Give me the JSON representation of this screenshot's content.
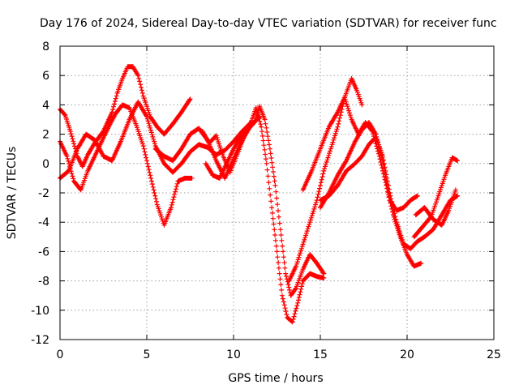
{
  "chart_data": {
    "type": "scatter",
    "title": "Day 176 of 2024, Sidereal Day-to-day VTEC variation (SDTVAR) for receiver func",
    "xlabel": "GPS time / hours",
    "ylabel": "SDTVAR / TECUs",
    "xlim": [
      0,
      25
    ],
    "ylim": [
      -12,
      8
    ],
    "xticks": [
      0,
      5,
      10,
      15,
      20,
      25
    ],
    "yticks": [
      -12,
      -10,
      -8,
      -6,
      -4,
      -2,
      0,
      2,
      4,
      6,
      8
    ],
    "grid": true,
    "marker": "+",
    "color": "#ff0000",
    "series": [
      {
        "name": "track-1",
        "x": [
          0.0,
          0.3,
          0.6,
          1.0,
          1.3,
          1.6,
          2.0,
          2.5,
          3.0,
          3.3,
          3.6,
          3.9,
          4.2,
          4.5,
          4.8,
          5.2,
          5.6,
          6.0,
          6.5,
          7.0,
          7.5
        ],
        "y": [
          3.7,
          3.3,
          2.2,
          0.5,
          -0.2,
          0.6,
          1.4,
          2.2,
          3.5,
          4.8,
          5.8,
          6.6,
          6.6,
          6.0,
          4.6,
          3.2,
          2.5,
          2.0,
          2.7,
          3.5,
          4.4
        ]
      },
      {
        "name": "track-2",
        "x": [
          0.0,
          0.4,
          0.8,
          1.2,
          1.6,
          2.0,
          2.4,
          2.8,
          3.2,
          3.6,
          4.0,
          4.4,
          4.8,
          5.2,
          5.6,
          6.0,
          6.4,
          6.8,
          7.2,
          7.6
        ],
        "y": [
          1.5,
          0.5,
          -1.2,
          -1.8,
          -0.5,
          0.5,
          1.5,
          2.5,
          3.4,
          4.0,
          3.8,
          2.6,
          1.2,
          -0.8,
          -2.8,
          -4.2,
          -3.0,
          -1.2,
          -1.0,
          -1.0
        ]
      },
      {
        "name": "track-3",
        "x": [
          0.0,
          0.5,
          1.0,
          1.5,
          2.0,
          2.5,
          3.0,
          3.5,
          4.0,
          4.5,
          5.0,
          5.5,
          6.0,
          6.5,
          7.0,
          7.5,
          8.0,
          8.5,
          9.0,
          9.5,
          10.0,
          10.5,
          11.0
        ],
        "y": [
          -1.0,
          -0.5,
          1.0,
          2.0,
          1.6,
          0.5,
          0.2,
          1.5,
          3.0,
          4.2,
          3.2,
          1.2,
          0.0,
          -0.6,
          0.0,
          0.8,
          1.3,
          1.1,
          0.6,
          0.9,
          1.5,
          2.2,
          2.8
        ]
      },
      {
        "name": "track-4",
        "x": [
          5.5,
          6.0,
          6.5,
          7.0,
          7.5,
          8.0,
          8.5,
          9.0,
          9.5,
          10.0,
          10.5,
          11.0,
          11.5
        ],
        "y": [
          1.0,
          0.5,
          0.2,
          1.0,
          2.0,
          2.4,
          1.6,
          0.2,
          -1.0,
          0.3,
          1.6,
          2.6,
          3.2
        ]
      },
      {
        "name": "track-5",
        "x": [
          8.2,
          8.6,
          9.0,
          9.4,
          9.8,
          10.2,
          10.6,
          11.0,
          11.3,
          11.6,
          11.9,
          12.2,
          12.5,
          12.8,
          13.1,
          13.4,
          13.7,
          14.0,
          14.4,
          14.8,
          15.2
        ],
        "y": [
          2.2,
          1.4,
          1.9,
          0.5,
          -0.6,
          0.6,
          1.8,
          2.8,
          3.8,
          2.5,
          0.0,
          -3.0,
          -6.0,
          -9.0,
          -10.5,
          -10.8,
          -9.5,
          -8.0,
          -7.5,
          -7.7,
          -7.8
        ]
      },
      {
        "name": "track-6",
        "x": [
          8.4,
          8.8,
          9.2,
          9.6,
          10.0,
          10.4,
          10.8,
          11.2,
          11.5,
          11.8,
          12.1,
          12.4,
          12.7,
          13.0,
          13.3,
          13.6,
          14.0,
          14.4,
          14.8,
          15.2
        ],
        "y": [
          0.0,
          -0.8,
          -1.0,
          0.0,
          1.0,
          1.8,
          2.3,
          2.8,
          3.9,
          3.0,
          1.0,
          -1.5,
          -4.5,
          -7.5,
          -9.0,
          -8.5,
          -7.2,
          -6.2,
          -6.8,
          -7.5
        ]
      },
      {
        "name": "track-7",
        "x": [
          13.2,
          13.6,
          14.0,
          14.4,
          14.8,
          15.2,
          15.6,
          16.0,
          16.4,
          16.8,
          17.1,
          17.4
        ],
        "y": [
          -8.0,
          -7.0,
          -5.5,
          -4.0,
          -2.5,
          -0.5,
          1.0,
          2.5,
          4.5,
          5.8,
          5.0,
          4.0
        ]
      },
      {
        "name": "track-8",
        "x": [
          14.0,
          14.5,
          15.0,
          15.5,
          16.0,
          16.4,
          16.8,
          17.2,
          17.6,
          18.0,
          18.4,
          18.8,
          19.2,
          19.6,
          20.0,
          20.4,
          20.8
        ],
        "y": [
          -1.8,
          -0.5,
          1.0,
          2.5,
          3.5,
          4.5,
          3.0,
          2.0,
          2.8,
          2.2,
          0.5,
          -1.5,
          -3.5,
          -5.0,
          -6.2,
          -7.0,
          -6.8
        ]
      },
      {
        "name": "track-9",
        "x": [
          15.0,
          15.5,
          16.0,
          16.5,
          17.0,
          17.4,
          17.8,
          18.2,
          18.6,
          19.0,
          19.4,
          19.8,
          20.2,
          20.6
        ],
        "y": [
          -3.0,
          -2.0,
          -0.8,
          0.2,
          1.5,
          2.3,
          2.8,
          2.0,
          0.2,
          -2.5,
          -3.2,
          -3.0,
          -2.5,
          -2.2
        ]
      },
      {
        "name": "track-10",
        "x": [
          15.0,
          15.5,
          16.0,
          16.5,
          17.0,
          17.4,
          17.8,
          18.2,
          18.6,
          19.0,
          19.4,
          19.8,
          20.2,
          20.6,
          21.0,
          21.5,
          22.0,
          22.5,
          22.9
        ],
        "y": [
          -2.5,
          -2.2,
          -1.5,
          -0.5,
          0.0,
          0.5,
          1.3,
          1.8,
          0.5,
          -2.0,
          -4.0,
          -5.5,
          -5.8,
          -5.3,
          -5.0,
          -4.5,
          -3.5,
          -2.5,
          -2.2
        ]
      },
      {
        "name": "track-11",
        "x": [
          20.5,
          21.0,
          21.5,
          22.0,
          22.4,
          22.8
        ],
        "y": [
          -3.5,
          -3.0,
          -3.8,
          -4.2,
          -3.2,
          -1.8
        ]
      },
      {
        "name": "track-12",
        "x": [
          20.4,
          20.9,
          21.4,
          21.8,
          22.2,
          22.6,
          22.9
        ],
        "y": [
          -5.0,
          -4.3,
          -3.6,
          -2.2,
          -0.8,
          0.4,
          0.2
        ]
      }
    ]
  }
}
